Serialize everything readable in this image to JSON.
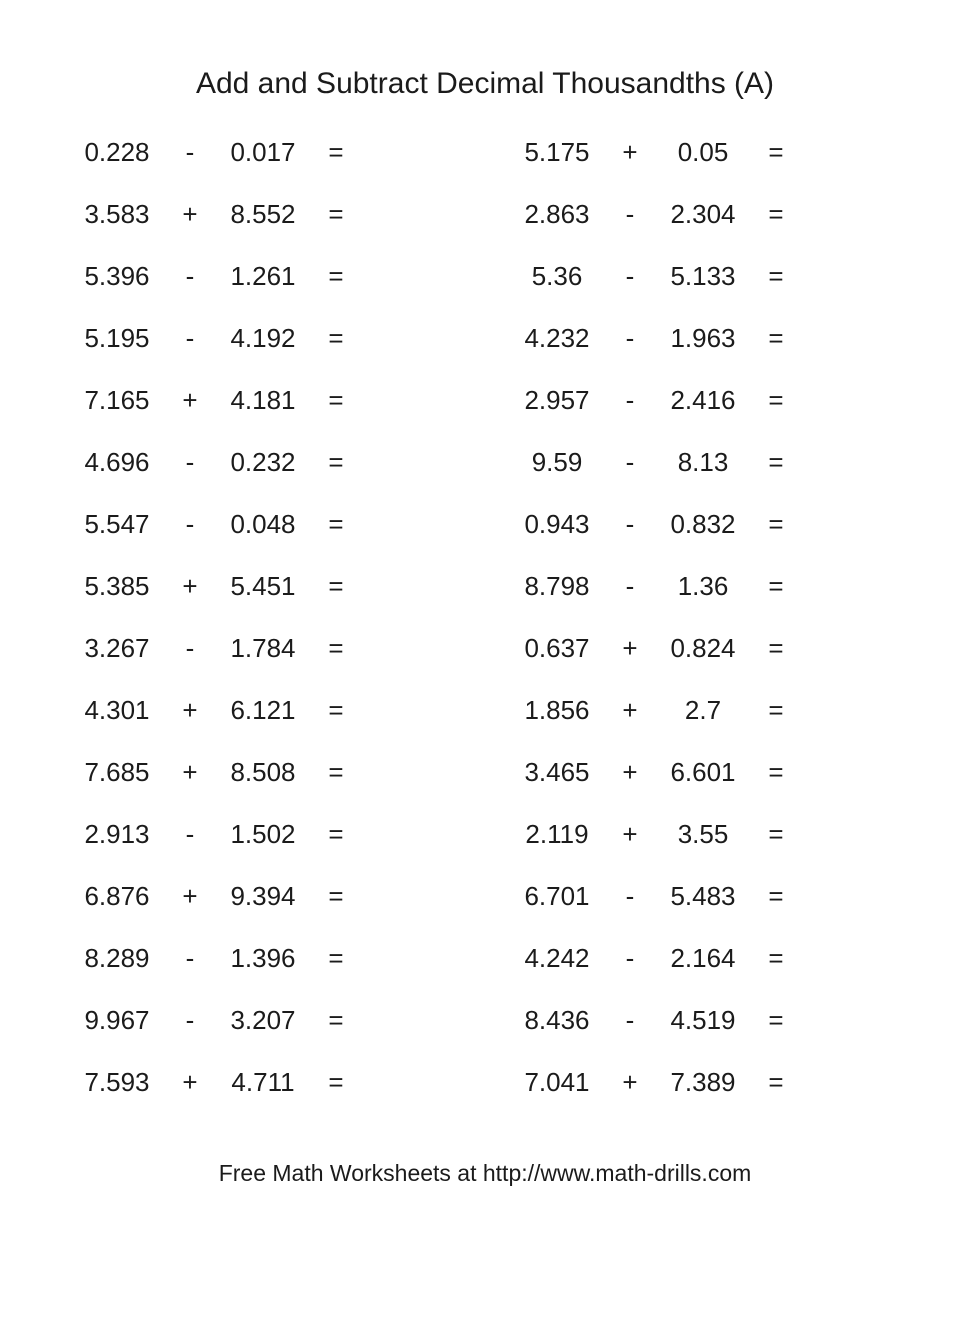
{
  "page": {
    "title": "Add and Subtract Decimal Thousandths (A)",
    "equals_sign": "=",
    "footer": "Free Math Worksheets at http://www.math-drills.com"
  },
  "problems": {
    "left": [
      {
        "a": "0.228",
        "op": "-",
        "b": "0.017"
      },
      {
        "a": "3.583",
        "op": "+",
        "b": "8.552"
      },
      {
        "a": "5.396",
        "op": "-",
        "b": "1.261"
      },
      {
        "a": "5.195",
        "op": "-",
        "b": "4.192"
      },
      {
        "a": "7.165",
        "op": "+",
        "b": "4.181"
      },
      {
        "a": "4.696",
        "op": "-",
        "b": "0.232"
      },
      {
        "a": "5.547",
        "op": "-",
        "b": "0.048"
      },
      {
        "a": "5.385",
        "op": "+",
        "b": "5.451"
      },
      {
        "a": "3.267",
        "op": "-",
        "b": "1.784"
      },
      {
        "a": "4.301",
        "op": "+",
        "b": "6.121"
      },
      {
        "a": "7.685",
        "op": "+",
        "b": "8.508"
      },
      {
        "a": "2.913",
        "op": "-",
        "b": "1.502"
      },
      {
        "a": "6.876",
        "op": "+",
        "b": "9.394"
      },
      {
        "a": "8.289",
        "op": "-",
        "b": "1.396"
      },
      {
        "a": "9.967",
        "op": "-",
        "b": "3.207"
      },
      {
        "a": "7.593",
        "op": "+",
        "b": "4.711"
      }
    ],
    "right": [
      {
        "a": "5.175",
        "op": "+",
        "b": "0.05"
      },
      {
        "a": "2.863",
        "op": "-",
        "b": "2.304"
      },
      {
        "a": "5.36",
        "op": "-",
        "b": "5.133"
      },
      {
        "a": "4.232",
        "op": "-",
        "b": "1.963"
      },
      {
        "a": "2.957",
        "op": "-",
        "b": "2.416"
      },
      {
        "a": "9.59",
        "op": "-",
        "b": "8.13"
      },
      {
        "a": "0.943",
        "op": "-",
        "b": "0.832"
      },
      {
        "a": "8.798",
        "op": "-",
        "b": "1.36"
      },
      {
        "a": "0.637",
        "op": "+",
        "b": "0.824"
      },
      {
        "a": "1.856",
        "op": "+",
        "b": "2.7"
      },
      {
        "a": "3.465",
        "op": "+",
        "b": "6.601"
      },
      {
        "a": "2.119",
        "op": "+",
        "b": "3.55"
      },
      {
        "a": "6.701",
        "op": "-",
        "b": "5.483"
      },
      {
        "a": "4.242",
        "op": "-",
        "b": "2.164"
      },
      {
        "a": "8.436",
        "op": "-",
        "b": "4.519"
      },
      {
        "a": "7.041",
        "op": "+",
        "b": "7.389"
      }
    ]
  }
}
